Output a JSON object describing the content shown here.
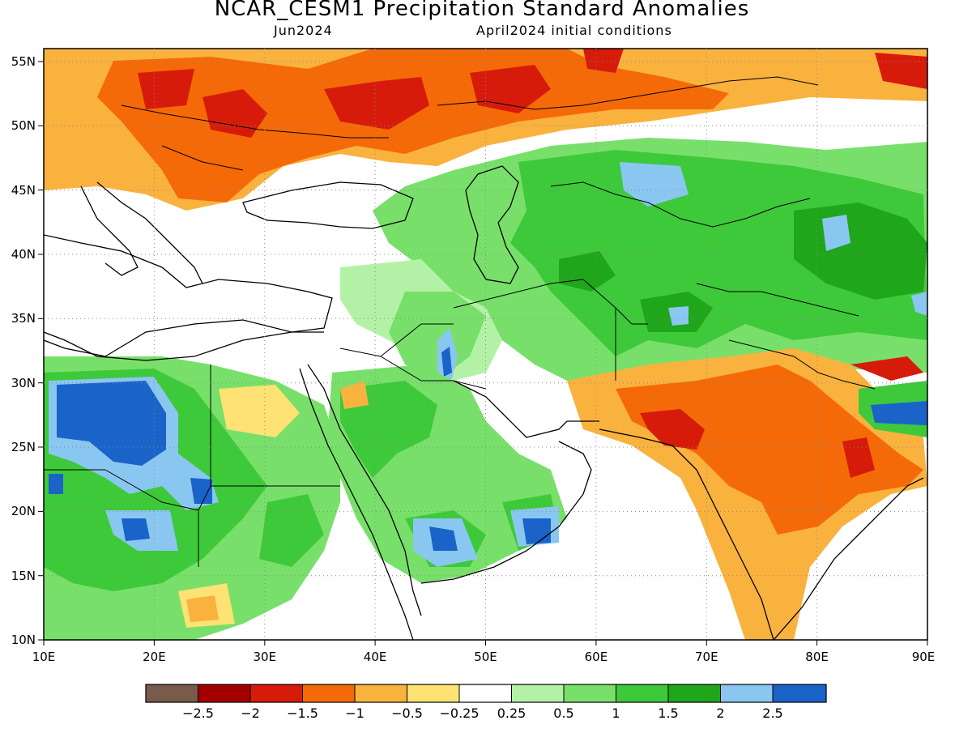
{
  "header": {
    "title": "NCAR_CESM1 Precipitation Standard Anomalies",
    "valid_month": "Jun2024",
    "init": "April2024 initial conditions"
  },
  "axes": {
    "lon_labels": [
      "10E",
      "20E",
      "30E",
      "40E",
      "50E",
      "60E",
      "70E",
      "80E",
      "90E"
    ],
    "lat_labels": [
      "55N",
      "50N",
      "45N",
      "40N",
      "35N",
      "30N",
      "25N",
      "20N",
      "15N",
      "10N"
    ],
    "lon_range": [
      10,
      90
    ],
    "lat_range": [
      10,
      56
    ],
    "grid": "dotted"
  },
  "colorbar": {
    "colors": [
      "#7a5a4a",
      "#a50000",
      "#d61b0b",
      "#f56a08",
      "#fab23e",
      "#ffe274",
      "#ffffff",
      "#b3f2a6",
      "#78e06a",
      "#3ec93a",
      "#1fa61a",
      "#8ac7f0",
      "#1a63c9"
    ],
    "labels": [
      "−2.5",
      "−2",
      "−1.5",
      "−1",
      "−0.5",
      "−0.25",
      "0.25",
      "0.5",
      "1",
      "1.5",
      "2",
      "2.5"
    ]
  },
  "map_regions": {
    "dry": "#f56a08",
    "very_dry": "#d61b0b",
    "mild_dry": "#fab23e",
    "wet": "#3ec93a",
    "mild_wet": "#78e06a",
    "very_wet": "#1a63c9",
    "wet_blue": "#8ac7f0"
  }
}
